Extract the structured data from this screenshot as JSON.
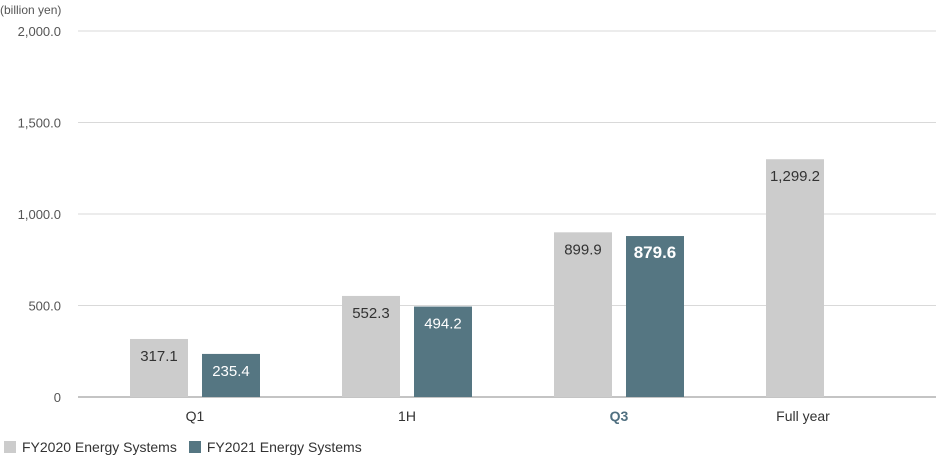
{
  "chart_data": {
    "type": "bar",
    "unit_label": "(billion yen)",
    "categories": [
      "Q1",
      "1H",
      "Q3",
      "Full year"
    ],
    "highlight_category": "Q3",
    "yticks": [
      "2,000.0",
      "1,500.0",
      "1,000.0",
      "500.0",
      "0"
    ],
    "ylim": [
      0,
      2000
    ],
    "grid": true,
    "legend_position": "bottom-left",
    "series": [
      {
        "name": "FY2020 Energy Systems",
        "color": "#cccccc",
        "label_color": "#333333",
        "values": [
          317.1,
          552.3,
          899.9,
          1299.2
        ],
        "labels": [
          "317.1",
          "552.3",
          "899.9",
          "1,299.2"
        ]
      },
      {
        "name": "FY2021 Energy Systems",
        "color": "#557682",
        "label_color": "#ffffff",
        "values": [
          235.4,
          494.2,
          879.6,
          null
        ],
        "labels": [
          "235.4",
          "494.2",
          "879.6",
          ""
        ]
      }
    ],
    "bold_labels": [
      "879.6"
    ]
  }
}
